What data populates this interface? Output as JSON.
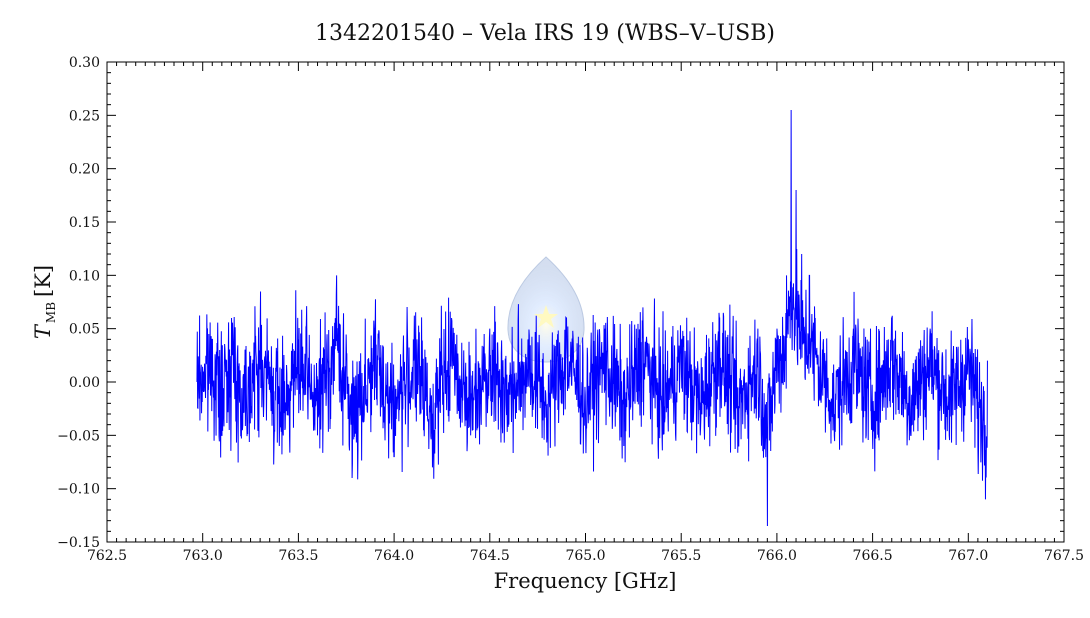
{
  "chart_data": {
    "type": "line",
    "title": "1342201540 – Vela IRS 19 (WBS–V–USB)",
    "xlabel": "Frequency [GHz]",
    "ylabel": {
      "symbol": "T",
      "subscript": "MB",
      "unit": "[K]"
    },
    "xlim": [
      762.5,
      767.5
    ],
    "ylim": [
      -0.15,
      0.3
    ],
    "x_ticks": [
      762.5,
      763.0,
      763.5,
      764.0,
      764.5,
      765.0,
      765.5,
      766.0,
      766.5,
      767.0,
      767.5
    ],
    "x_tick_labels": [
      "762.5",
      "763.0",
      "763.5",
      "764.0",
      "764.5",
      "765.0",
      "765.5",
      "766.0",
      "766.5",
      "767.0",
      "767.5"
    ],
    "y_ticks": [
      -0.15,
      -0.1,
      -0.05,
      0.0,
      0.05,
      0.1,
      0.15,
      0.2,
      0.25,
      0.3
    ],
    "y_tick_labels": [
      "−0.15",
      "−0.10",
      "−0.05",
      "0.00",
      "0.05",
      "0.10",
      "0.15",
      "0.20",
      "0.25",
      "0.30"
    ],
    "grid": false,
    "series": [
      {
        "color": "#0000ff",
        "x_start": 762.97,
        "x_end": 767.1,
        "noise_rms": 0.028,
        "points": [
          [
            762.97,
            0.0
          ],
          [
            763.05,
            0.04
          ],
          [
            763.1,
            -0.05
          ],
          [
            763.15,
            0.06
          ],
          [
            763.2,
            -0.04
          ],
          [
            763.3,
            0.05
          ],
          [
            763.4,
            -0.06
          ],
          [
            763.5,
            0.04
          ],
          [
            763.6,
            -0.05
          ],
          [
            763.7,
            0.1
          ],
          [
            763.78,
            -0.09
          ],
          [
            763.9,
            0.05
          ],
          [
            764.0,
            -0.07
          ],
          [
            764.1,
            0.04
          ],
          [
            764.2,
            -0.08
          ],
          [
            764.3,
            0.06
          ],
          [
            764.4,
            -0.05
          ],
          [
            764.5,
            0.05
          ],
          [
            764.6,
            -0.04
          ],
          [
            764.7,
            0.04
          ],
          [
            764.8,
            -0.05
          ],
          [
            764.9,
            0.06
          ],
          [
            765.0,
            -0.04
          ],
          [
            765.1,
            0.05
          ],
          [
            765.2,
            -0.06
          ],
          [
            765.3,
            0.07
          ],
          [
            765.4,
            -0.05
          ],
          [
            765.5,
            0.04
          ],
          [
            765.6,
            -0.05
          ],
          [
            765.7,
            0.06
          ],
          [
            765.8,
            -0.06
          ],
          [
            765.9,
            0.05
          ],
          [
            765.95,
            -0.135
          ],
          [
            766.0,
            0.05
          ],
          [
            766.05,
            0.1
          ],
          [
            766.075,
            0.255
          ],
          [
            766.1,
            0.18
          ],
          [
            766.13,
            0.12
          ],
          [
            766.17,
            0.1
          ],
          [
            766.2,
            0.06
          ],
          [
            766.3,
            -0.05
          ],
          [
            766.4,
            0.05
          ],
          [
            766.5,
            -0.05
          ],
          [
            766.6,
            0.06
          ],
          [
            766.7,
            -0.05
          ],
          [
            766.8,
            0.05
          ],
          [
            766.9,
            -0.05
          ],
          [
            767.0,
            0.04
          ],
          [
            767.05,
            -0.06
          ],
          [
            767.09,
            -0.11
          ],
          [
            767.1,
            0.02
          ]
        ]
      }
    ]
  }
}
